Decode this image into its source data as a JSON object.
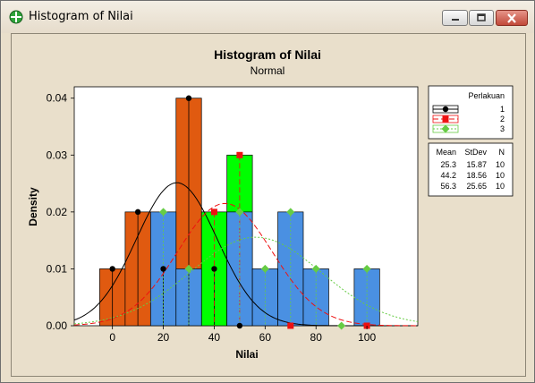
{
  "window": {
    "title": "Histogram of Nilai",
    "controls": {
      "minimize": "minimize-icon",
      "maximize": "maximize-icon",
      "close": "close-icon"
    }
  },
  "chart_data": {
    "type": "bar",
    "title": "Histogram of Nilai",
    "subtitle": "Normal",
    "xlabel": "Nilai",
    "ylabel": "Density",
    "xlim": [
      -15,
      120
    ],
    "ylim": [
      0,
      0.042
    ],
    "xticks": [
      0,
      20,
      40,
      60,
      80,
      100
    ],
    "yticks": [
      0.0,
      0.01,
      0.02,
      0.03,
      0.04
    ],
    "ytick_labels": [
      "0.00",
      "0.01",
      "0.02",
      "0.03",
      "0.04"
    ],
    "bin_width": 10,
    "legend": {
      "title": "Perlakuan",
      "placement": "right",
      "stats_header": [
        "Mean",
        "StDev",
        "N"
      ]
    },
    "series": [
      {
        "name": "1",
        "color": "#e05a10",
        "line_color": "#000000",
        "marker": "circle",
        "mean": 25.3,
        "stdev": 15.87,
        "n": 10,
        "stats_text": [
          "25.3",
          "15.87",
          "10"
        ],
        "bins": [
          0,
          10,
          20,
          30,
          40,
          50
        ],
        "density": [
          0.01,
          0.02,
          0.01,
          0.04,
          0.01,
          0.0
        ]
      },
      {
        "name": "2",
        "color": "#00ff00",
        "line_color": "#ee1111",
        "marker": "square",
        "mean": 44.2,
        "stdev": 18.56,
        "n": 10,
        "stats_text": [
          "44.2",
          "18.56",
          "10"
        ],
        "bins": [
          40,
          50,
          70,
          100
        ],
        "density": [
          0.02,
          0.03,
          0.0,
          0.0
        ]
      },
      {
        "name": "3",
        "color": "#4a90e2",
        "line_color": "#66cc44",
        "marker": "diamond",
        "mean": 56.3,
        "stdev": 25.65,
        "n": 10,
        "stats_text": [
          "56.3",
          "25.65",
          "10"
        ],
        "bins": [
          20,
          30,
          50,
          60,
          70,
          80,
          90,
          100
        ],
        "density": [
          0.02,
          0.01,
          0.02,
          0.01,
          0.02,
          0.01,
          0.0,
          0.01
        ]
      }
    ]
  }
}
